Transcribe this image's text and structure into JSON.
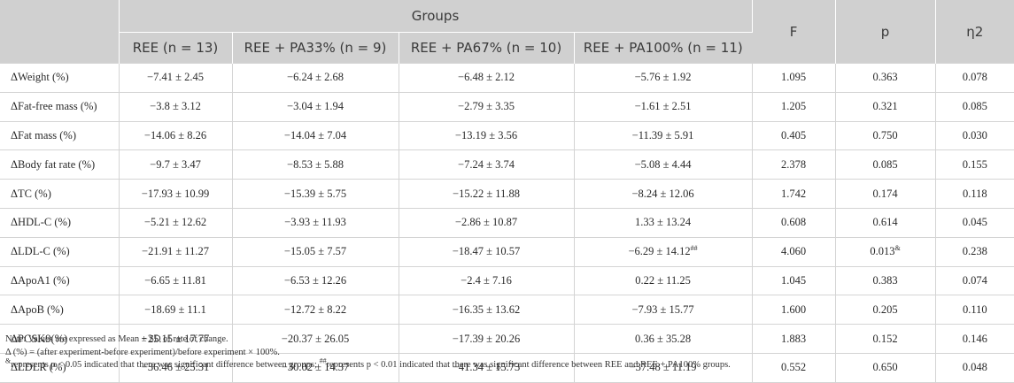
{
  "header": {
    "groups_label": "Groups",
    "columns": [
      "REE (n = 13)",
      "REE + PA33% (n = 9)",
      "REE + PA67% (n = 10)",
      "REE + PA100% (n = 11)"
    ],
    "f_label": "F",
    "p_label": "p",
    "eta_label": "η2"
  },
  "rows": [
    {
      "label": "ΔWeight (%)",
      "ree": "−7.41 ± 2.45",
      "pa33": "−6.24 ± 2.68",
      "pa67": "−6.48 ± 2.12",
      "pa100": "−5.76 ± 1.92",
      "pa100_sup": "",
      "f": "1.095",
      "p": "0.363",
      "p_sup": "",
      "eta": "0.078"
    },
    {
      "label": "ΔFat-free mass (%)",
      "ree": "−3.8 ± 3.12",
      "pa33": "−3.04 ± 1.94",
      "pa67": "−2.79 ± 3.35",
      "pa100": "−1.61 ± 2.51",
      "pa100_sup": "",
      "f": "1.205",
      "p": "0.321",
      "p_sup": "",
      "eta": "0.085"
    },
    {
      "label": "ΔFat mass (%)",
      "ree": "−14.06 ± 8.26",
      "pa33": "−14.04 ± 7.04",
      "pa67": "−13.19 ± 3.56",
      "pa100": "−11.39 ± 5.91",
      "pa100_sup": "",
      "f": "0.405",
      "p": "0.750",
      "p_sup": "",
      "eta": "0.030"
    },
    {
      "label": "ΔBody fat rate (%)",
      "ree": "−9.7 ± 3.47",
      "pa33": "−8.53 ± 5.88",
      "pa67": "−7.24 ± 3.74",
      "pa100": "−5.08 ± 4.44",
      "pa100_sup": "",
      "f": "2.378",
      "p": "0.085",
      "p_sup": "",
      "eta": "0.155"
    },
    {
      "label": "ΔTC (%)",
      "ree": "−17.93 ± 10.99",
      "pa33": "−15.39 ± 5.75",
      "pa67": "−15.22 ± 11.88",
      "pa100": "−8.24 ± 12.06",
      "pa100_sup": "",
      "f": "1.742",
      "p": "0.174",
      "p_sup": "",
      "eta": "0.118"
    },
    {
      "label": "ΔHDL-C (%)",
      "ree": "−5.21 ± 12.62",
      "pa33": "−3.93 ± 11.93",
      "pa67": "−2.86 ± 10.87",
      "pa100": "1.33 ± 13.24",
      "pa100_sup": "",
      "f": "0.608",
      "p": "0.614",
      "p_sup": "",
      "eta": "0.045"
    },
    {
      "label": "ΔLDL-C (%)",
      "ree": "−21.91 ± 11.27",
      "pa33": "−15.05 ± 7.57",
      "pa67": "−18.47 ± 10.57",
      "pa100": "−6.29 ± 14.12",
      "pa100_sup": "##",
      "f": "4.060",
      "p": "0.013",
      "p_sup": "&",
      "eta": "0.238"
    },
    {
      "label": "ΔApoA1 (%)",
      "ree": "−6.65 ± 11.81",
      "pa33": "−6.53 ± 12.26",
      "pa67": "−2.4 ± 7.16",
      "pa100": "0.22 ± 11.25",
      "pa100_sup": "",
      "f": "1.045",
      "p": "0.383",
      "p_sup": "",
      "eta": "0.074"
    },
    {
      "label": "ΔApoB (%)",
      "ree": "−18.69 ± 11.1",
      "pa33": "−12.72 ± 8.22",
      "pa67": "−16.35 ± 13.62",
      "pa100": "−7.93 ± 15.77",
      "pa100_sup": "",
      "f": "1.600",
      "p": "0.205",
      "p_sup": "",
      "eta": "0.110"
    },
    {
      "label": "ΔPCSK9(%)",
      "ree": "−25.15 ± 17.77",
      "pa33": "−20.37 ± 26.05",
      "pa67": "−17.39 ± 20.26",
      "pa100": "0.36 ± 35.28",
      "pa100_sup": "",
      "f": "1.883",
      "p": "0.152",
      "p_sup": "",
      "eta": "0.146"
    },
    {
      "label": "ΔLDLR (%)",
      "ree": "−36.46 ± 25.31",
      "pa33": "−30.02 ± 14.37",
      "pa67": "−41.34 ± 15.73",
      "pa100": "−37.48 ± 11.19",
      "pa100_sup": "",
      "f": "0.552",
      "p": "0.650",
      "p_sup": "",
      "eta": "0.048"
    }
  ],
  "notes": {
    "line1": "Note: Values are expressed as Mean ± SD of rate of change.",
    "line2": "Δ (%) = (after experiment-before experiment)/before experiment × 100%.",
    "line3_sup": "&",
    "line3_text": "represents p < 0.05 indicated that there was significant difference between groups; ",
    "line3_sup2": "##",
    "line3_text2": "represents p < 0.01 indicated that there was significant difference between REE and REE + PA100% groups."
  }
}
